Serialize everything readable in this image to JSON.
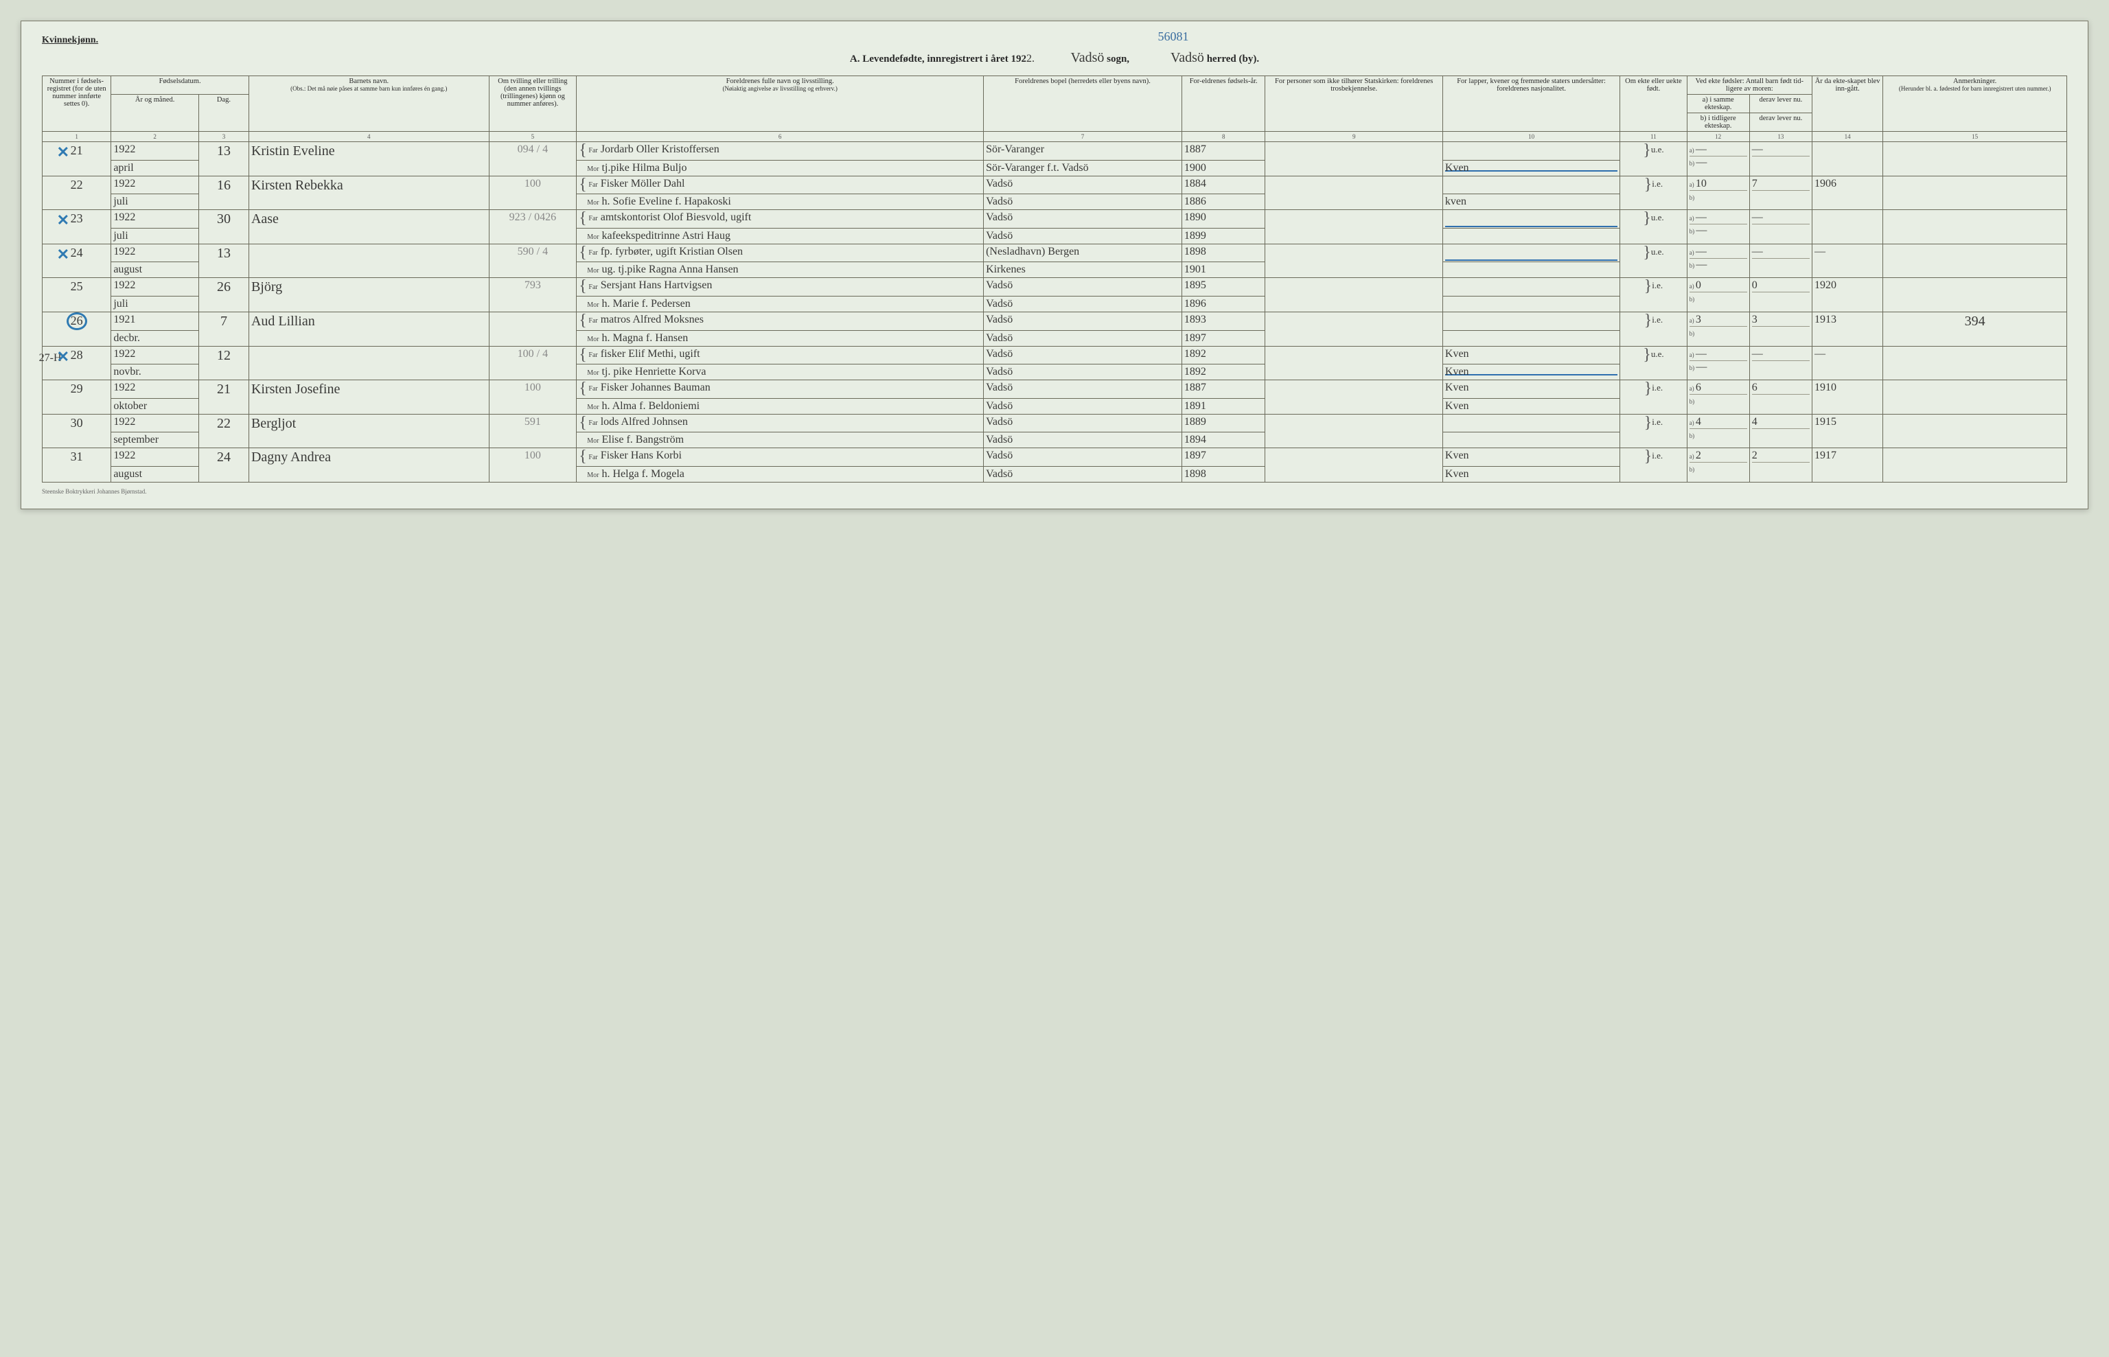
{
  "header": {
    "gender_label": "Kvinnekjønn.",
    "title_prefix": "A.  Levendefødte, innregistrert i året 192",
    "year_digit": "2.",
    "sogn_hand": "Vadsö",
    "sogn_label": "sogn,",
    "ref_number": "56081",
    "herred_hand": "Vadsö",
    "herred_label": "herred (by)."
  },
  "columns": {
    "c1": "Nummer i fødsels-registret (for de uten nummer innførte settes 0).",
    "c2_top": "Fødselsdatum.",
    "c2_year": "År og måned.",
    "c2_day": "Dag.",
    "c4_top": "Barnets navn.",
    "c4_sub": "(Obs.: Det må nøie påses at samme barn kun innføres én gang.)",
    "c5": "Om tvilling eller trilling (den annen tvillings (trillingenes) kjønn og nummer anføres).",
    "c6_top": "Foreldrenes fulle navn og livsstilling.",
    "c6_sub": "(Nøiaktig angivelse av livsstilling og erhverv.)",
    "c7": "Foreldrenes bopel (herredets eller byens navn).",
    "c8": "For-eldrenes fødsels-år.",
    "c9": "For personer som ikke tilhører Statskirken: foreldrenes trosbekjennelse.",
    "c10": "For lapper, kvener og fremmede staters undersåtter: foreldrenes nasjonalitet.",
    "c11": "Om ekte eller uekte født.",
    "c12_top": "Ved ekte fødsler: Antall barn født tid-ligere av moren:",
    "c12_a": "a) i samme ekteskap.",
    "c12_b": "b) i tidligere ekteskap.",
    "c13_a": "derav lever nu.",
    "c13_b": "derav lever nu.",
    "c14": "År da ekte-skapet blev inn-gått.",
    "c15_top": "Anmerkninger.",
    "c15_sub": "(Herunder bl. a. fødested for barn innregistrert uten nummer.)"
  },
  "colnums": [
    "1",
    "2",
    "3",
    "4",
    "5",
    "6",
    "7",
    "8",
    "9",
    "10",
    "11",
    "12",
    "13",
    "14",
    "15"
  ],
  "rows": [
    {
      "num": "21",
      "mark": "x",
      "year": "1922",
      "month": "april",
      "day": "13",
      "child": "Kristin Eveline",
      "tw": "094 / 4",
      "far": "Jordarb Oller Kristoffersen",
      "far_place": "Sör-Varanger",
      "far_year": "1887",
      "mor": "tj.pike Hilma Buljo",
      "mor_place": "Sör-Varanger f.t. Vadsö",
      "mor_year": "1900",
      "nat_far": "",
      "nat_mor": "Kven",
      "ekte": "u.e.",
      "a": "—",
      "b": "—",
      "a_lev": "—",
      "aar": "",
      "anm": ""
    },
    {
      "num": "22",
      "mark": "",
      "year": "1922",
      "month": "juli",
      "day": "16",
      "child": "Kirsten Rebekka",
      "tw": "100",
      "far": "Fisker Möller Dahl",
      "far_place": "Vadsö",
      "far_year": "1884",
      "mor": "h. Sofie Eveline f. Hapakoski",
      "mor_place": "Vadsö",
      "mor_year": "1886",
      "nat_far": "",
      "nat_mor": "kven",
      "ekte": "i.e.",
      "a": "10",
      "b": "",
      "a_lev": "7",
      "aar": "1906",
      "anm": ""
    },
    {
      "num": "23",
      "mark": "x",
      "year": "1922",
      "month": "juli",
      "day": "30",
      "child": "Aase",
      "tw": "923 / 0426",
      "far": "amtskontorist Olof Biesvold, ugift",
      "far_place": "Vadsö",
      "far_year": "1890",
      "mor": "kafeekspeditrinne Astri Haug",
      "mor_place": "Vadsö",
      "mor_year": "1899",
      "nat_far": "",
      "nat_mor": "",
      "ekte": "u.e.",
      "a": "—",
      "b": "—",
      "a_lev": "—",
      "aar": "",
      "anm": ""
    },
    {
      "num": "24",
      "mark": "x",
      "year": "1922",
      "month": "august",
      "day": "13",
      "child": "",
      "tw": "590 / 4",
      "far": "fp. fyrbøter, ugift Kristian Olsen",
      "far_place": "(Nesladhavn) Bergen",
      "far_year": "1898",
      "mor": "ug. tj.pike Ragna Anna Hansen",
      "mor_place": "Kirkenes",
      "mor_year": "1901",
      "nat_far": "",
      "nat_mor": "",
      "ekte": "u.e.",
      "a": "—",
      "b": "—",
      "a_lev": "—",
      "aar": "—",
      "anm": ""
    },
    {
      "num": "25",
      "mark": "",
      "year": "1922",
      "month": "juli",
      "day": "26",
      "child": "Björg",
      "tw": "793",
      "far": "Sersjant Hans Hartvigsen",
      "far_place": "Vadsö",
      "far_year": "1895",
      "mor": "h. Marie f. Pedersen",
      "mor_place": "Vadsö",
      "mor_year": "1896",
      "nat_far": "",
      "nat_mor": "",
      "ekte": "i.e.",
      "a": "0",
      "b": "",
      "a_lev": "0",
      "aar": "1920",
      "anm": ""
    },
    {
      "num": "26",
      "mark": "circle",
      "year": "1921",
      "month": "decbr.",
      "day": "7",
      "child": "Aud Lillian",
      "tw": "",
      "far": "matros Alfred Moksnes",
      "far_place": "Vadsö",
      "far_year": "1893",
      "mor": "h. Magna f. Hansen",
      "mor_place": "Vadsö",
      "mor_year": "1897",
      "nat_far": "",
      "nat_mor": "",
      "ekte": "i.e.",
      "a": "3",
      "b": "",
      "a_lev": "3",
      "aar": "1913",
      "anm": "394"
    },
    {
      "num": "28",
      "mark": "x",
      "left_note": "27-H",
      "year": "1922",
      "month": "novbr.",
      "day": "12",
      "child": "",
      "tw": "100 / 4",
      "far": "fisker Elif Methi, ugift",
      "far_place": "Vadsö",
      "far_year": "1892",
      "mor": "tj. pike Henriette Korva",
      "mor_place": "Vadsö",
      "mor_year": "1892",
      "nat_far": "Kven",
      "nat_mor": "Kven",
      "ekte": "u.e.",
      "a": "—",
      "b": "—",
      "a_lev": "—",
      "aar": "—",
      "anm": ""
    },
    {
      "num": "29",
      "mark": "",
      "year": "1922",
      "month": "oktober",
      "day": "21",
      "child": "Kirsten Josefine",
      "tw": "100",
      "far": "Fisker Johannes Bauman",
      "far_place": "Vadsö",
      "far_year": "1887",
      "mor": "h. Alma f. Beldoniemi",
      "mor_place": "Vadsö",
      "mor_year": "1891",
      "nat_far": "Kven",
      "nat_mor": "Kven",
      "ekte": "i.e.",
      "a": "6",
      "b": "",
      "a_lev": "6",
      "aar": "1910",
      "anm": ""
    },
    {
      "num": "30",
      "mark": "",
      "year": "1922",
      "month": "september",
      "day": "22",
      "child": "Bergljot",
      "tw": "591",
      "far": "lods Alfred Johnsen",
      "far_place": "Vadsö",
      "far_year": "1889",
      "mor": "Elise f. Bangström",
      "mor_place": "Vadsö",
      "mor_year": "1894",
      "nat_far": "",
      "nat_mor": "",
      "ekte": "i.e.",
      "a": "4",
      "b": "",
      "a_lev": "4",
      "aar": "1915",
      "anm": ""
    },
    {
      "num": "31",
      "mark": "",
      "year": "1922",
      "month": "august",
      "day": "24",
      "child": "Dagny Andrea",
      "tw": "100",
      "far": "Fisker Hans Korbi",
      "far_place": "Vadsö",
      "far_year": "1897",
      "mor": "h. Helga f. Mogela",
      "mor_place": "Vadsö",
      "mor_year": "1898",
      "nat_far": "Kven",
      "nat_mor": "Kven",
      "ekte": "i.e.",
      "a": "2",
      "b": "",
      "a_lev": "2",
      "aar": "1917",
      "anm": ""
    }
  ],
  "footer": "Steenske Boktrykkeri Johannes Bjørnstad.",
  "style": {
    "page_bg": "#e8eee4",
    "body_bg": "#d8dfd2",
    "border": "#6a6a5a",
    "blue": "#2f7ab2",
    "widths_pct": [
      3.3,
      4.2,
      2.4,
      11.5,
      4.2,
      19.5,
      9.5,
      4.0,
      8.5,
      8.5,
      3.2,
      3.0,
      3.0,
      3.4,
      8.8
    ]
  }
}
